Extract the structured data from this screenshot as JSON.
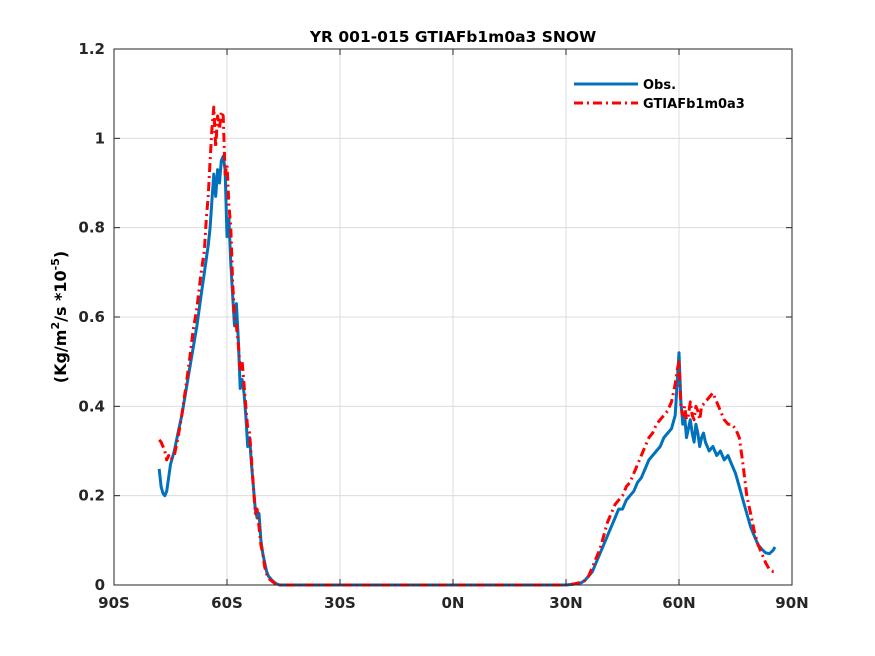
{
  "chart_data": {
    "type": "line",
    "title": "YR 001-015 GTIAFb1m0a3 SNOW",
    "xlabel": "",
    "ylabel": "(Kg/m²/s *10⁻⁵)",
    "ylabel_parts": {
      "base1": "(Kg/m",
      "sup1": "2",
      "base2": "/s *10",
      "sup2": "-5",
      "base3": ")"
    },
    "xlim": [
      -90,
      90
    ],
    "ylim": [
      0,
      1.2
    ],
    "xticks": [
      -90,
      -60,
      -30,
      0,
      30,
      60,
      90
    ],
    "xtick_labels": [
      "90S",
      "60S",
      "30S",
      "0N",
      "30N",
      "60N",
      "90N"
    ],
    "yticks": [
      0,
      0.2,
      0.4,
      0.6,
      0.8,
      1.0,
      1.2
    ],
    "ytick_labels": [
      "0",
      "0.2",
      "0.4",
      "0.6",
      "0.8",
      "1",
      "1.2"
    ],
    "grid": true,
    "legend_position": "top-right",
    "series": [
      {
        "name": "Obs.",
        "color": "#0072BD",
        "style": "solid",
        "points": [
          [
            -78,
            0.26
          ],
          [
            -77.5,
            0.22
          ],
          [
            -77,
            0.205
          ],
          [
            -76.5,
            0.2
          ],
          [
            -76,
            0.21
          ],
          [
            -75.5,
            0.24
          ],
          [
            -75,
            0.27
          ],
          [
            -74,
            0.3
          ],
          [
            -73,
            0.34
          ],
          [
            -72,
            0.38
          ],
          [
            -71,
            0.43
          ],
          [
            -70,
            0.48
          ],
          [
            -69,
            0.53
          ],
          [
            -68,
            0.58
          ],
          [
            -67,
            0.64
          ],
          [
            -66,
            0.7
          ],
          [
            -65,
            0.76
          ],
          [
            -64.5,
            0.8
          ],
          [
            -64,
            0.86
          ],
          [
            -63.5,
            0.92
          ],
          [
            -63,
            0.87
          ],
          [
            -62.5,
            0.93
          ],
          [
            -62,
            0.9
          ],
          [
            -61.5,
            0.95
          ],
          [
            -61,
            0.96
          ],
          [
            -60.5,
            0.93
          ],
          [
            -60,
            0.78
          ],
          [
            -59.5,
            0.82
          ],
          [
            -59,
            0.72
          ],
          [
            -58.5,
            0.65
          ],
          [
            -58,
            0.58
          ],
          [
            -57.5,
            0.63
          ],
          [
            -57,
            0.55
          ],
          [
            -56.5,
            0.44
          ],
          [
            -56,
            0.46
          ],
          [
            -55.5,
            0.43
          ],
          [
            -55,
            0.38
          ],
          [
            -54.5,
            0.31
          ],
          [
            -54,
            0.33
          ],
          [
            -53.5,
            0.27
          ],
          [
            -53,
            0.22
          ],
          [
            -52.5,
            0.17
          ],
          [
            -52,
            0.15
          ],
          [
            -51.5,
            0.16
          ],
          [
            -51,
            0.1
          ],
          [
            -50.5,
            0.07
          ],
          [
            -50,
            0.05
          ],
          [
            -49.5,
            0.03
          ],
          [
            -49,
            0.02
          ],
          [
            -48,
            0.01
          ],
          [
            -47,
            0.003
          ],
          [
            -46,
            0.0
          ],
          [
            -40,
            0.0
          ],
          [
            -30,
            0.0
          ],
          [
            -20,
            0.0
          ],
          [
            -10,
            0.0
          ],
          [
            0,
            0.0
          ],
          [
            10,
            0.0
          ],
          [
            20,
            0.0
          ],
          [
            30,
            0.0
          ],
          [
            32,
            0.002
          ],
          [
            34,
            0.005
          ],
          [
            35,
            0.01
          ],
          [
            36,
            0.02
          ],
          [
            37,
            0.03
          ],
          [
            38,
            0.05
          ],
          [
            39,
            0.07
          ],
          [
            40,
            0.09
          ],
          [
            41,
            0.11
          ],
          [
            42,
            0.13
          ],
          [
            43,
            0.15
          ],
          [
            44,
            0.17
          ],
          [
            45,
            0.17
          ],
          [
            46,
            0.19
          ],
          [
            47,
            0.2
          ],
          [
            48,
            0.21
          ],
          [
            49,
            0.23
          ],
          [
            50,
            0.24
          ],
          [
            51,
            0.26
          ],
          [
            52,
            0.28
          ],
          [
            53,
            0.29
          ],
          [
            54,
            0.3
          ],
          [
            55,
            0.31
          ],
          [
            56,
            0.33
          ],
          [
            57,
            0.34
          ],
          [
            58,
            0.35
          ],
          [
            59,
            0.38
          ],
          [
            59.5,
            0.45
          ],
          [
            60,
            0.52
          ],
          [
            60.5,
            0.41
          ],
          [
            61,
            0.36
          ],
          [
            61.5,
            0.38
          ],
          [
            62,
            0.33
          ],
          [
            62.5,
            0.35
          ],
          [
            63,
            0.37
          ],
          [
            63.5,
            0.34
          ],
          [
            64,
            0.32
          ],
          [
            64.5,
            0.36
          ],
          [
            65,
            0.34
          ],
          [
            65.5,
            0.31
          ],
          [
            66,
            0.33
          ],
          [
            66.5,
            0.34
          ],
          [
            67,
            0.32
          ],
          [
            67.5,
            0.31
          ],
          [
            68,
            0.3
          ],
          [
            69,
            0.31
          ],
          [
            70,
            0.29
          ],
          [
            71,
            0.3
          ],
          [
            72,
            0.28
          ],
          [
            73,
            0.29
          ],
          [
            74,
            0.27
          ],
          [
            75,
            0.25
          ],
          [
            76,
            0.22
          ],
          [
            77,
            0.19
          ],
          [
            78,
            0.16
          ],
          [
            79,
            0.13
          ],
          [
            80,
            0.11
          ],
          [
            81,
            0.09
          ],
          [
            82,
            0.08
          ],
          [
            83,
            0.072
          ],
          [
            84,
            0.07
          ],
          [
            85,
            0.078
          ],
          [
            85.5,
            0.085
          ]
        ]
      },
      {
        "name": "GTIAFb1m0a3",
        "color": "#FF0000",
        "style": "dashdot",
        "points": [
          [
            -78,
            0.325
          ],
          [
            -77.5,
            0.32
          ],
          [
            -77,
            0.31
          ],
          [
            -76.5,
            0.3
          ],
          [
            -76,
            0.28
          ],
          [
            -75.5,
            0.29
          ],
          [
            -75,
            0.28
          ],
          [
            -74.5,
            0.285
          ],
          [
            -74,
            0.29
          ],
          [
            -73.5,
            0.31
          ],
          [
            -73,
            0.33
          ],
          [
            -72,
            0.38
          ],
          [
            -71,
            0.44
          ],
          [
            -70,
            0.5
          ],
          [
            -69,
            0.57
          ],
          [
            -68,
            0.62
          ],
          [
            -67,
            0.69
          ],
          [
            -66,
            0.75
          ],
          [
            -65.5,
            0.82
          ],
          [
            -65,
            0.87
          ],
          [
            -64.5,
            0.95
          ],
          [
            -64,
            1.02
          ],
          [
            -63.5,
            1.07
          ],
          [
            -63,
            0.98
          ],
          [
            -62.5,
            1.05
          ],
          [
            -62,
            1.02
          ],
          [
            -61.5,
            1.06
          ],
          [
            -61,
            1.05
          ],
          [
            -60.5,
            0.92
          ],
          [
            -60,
            0.94
          ],
          [
            -59.5,
            0.85
          ],
          [
            -59,
            0.8
          ],
          [
            -58.5,
            0.68
          ],
          [
            -58,
            0.6
          ],
          [
            -57.5,
            0.58
          ],
          [
            -57,
            0.54
          ],
          [
            -56.5,
            0.48
          ],
          [
            -56,
            0.5
          ],
          [
            -55.5,
            0.45
          ],
          [
            -55,
            0.4
          ],
          [
            -54.5,
            0.35
          ],
          [
            -54,
            0.34
          ],
          [
            -53.5,
            0.28
          ],
          [
            -53,
            0.22
          ],
          [
            -52.5,
            0.16
          ],
          [
            -52,
            0.17
          ],
          [
            -51.5,
            0.13
          ],
          [
            -51,
            0.09
          ],
          [
            -50.5,
            0.07
          ],
          [
            -50,
            0.04
          ],
          [
            -49.5,
            0.025
          ],
          [
            -49,
            0.015
          ],
          [
            -48,
            0.008
          ],
          [
            -47,
            0.002
          ],
          [
            -46,
            0.0
          ],
          [
            -40,
            0.0
          ],
          [
            -30,
            0.0
          ],
          [
            -20,
            0.0
          ],
          [
            -10,
            0.0
          ],
          [
            0,
            0.0
          ],
          [
            10,
            0.0
          ],
          [
            20,
            0.0
          ],
          [
            30,
            0.0
          ],
          [
            32,
            0.002
          ],
          [
            34,
            0.006
          ],
          [
            35,
            0.01
          ],
          [
            36,
            0.02
          ],
          [
            37,
            0.04
          ],
          [
            38,
            0.06
          ],
          [
            39,
            0.08
          ],
          [
            40,
            0.11
          ],
          [
            41,
            0.14
          ],
          [
            42,
            0.16
          ],
          [
            43,
            0.18
          ],
          [
            44,
            0.19
          ],
          [
            45,
            0.2
          ],
          [
            46,
            0.22
          ],
          [
            47,
            0.23
          ],
          [
            48,
            0.25
          ],
          [
            49,
            0.27
          ],
          [
            50,
            0.29
          ],
          [
            51,
            0.31
          ],
          [
            52,
            0.33
          ],
          [
            53,
            0.34
          ],
          [
            54,
            0.36
          ],
          [
            55,
            0.37
          ],
          [
            56,
            0.38
          ],
          [
            57,
            0.39
          ],
          [
            58,
            0.41
          ],
          [
            59,
            0.45
          ],
          [
            59.5,
            0.48
          ],
          [
            60,
            0.5
          ],
          [
            60.5,
            0.4
          ],
          [
            61,
            0.38
          ],
          [
            61.5,
            0.4
          ],
          [
            62,
            0.37
          ],
          [
            62.5,
            0.38
          ],
          [
            63,
            0.41
          ],
          [
            63.5,
            0.38
          ],
          [
            64,
            0.37
          ],
          [
            64.5,
            0.4
          ],
          [
            65,
            0.39
          ],
          [
            65.5,
            0.37
          ],
          [
            66,
            0.4
          ],
          [
            67,
            0.41
          ],
          [
            68,
            0.42
          ],
          [
            69,
            0.43
          ],
          [
            70,
            0.41
          ],
          [
            71,
            0.39
          ],
          [
            72,
            0.37
          ],
          [
            73,
            0.36
          ],
          [
            74,
            0.36
          ],
          [
            75,
            0.35
          ],
          [
            76,
            0.33
          ],
          [
            77,
            0.27
          ],
          [
            78,
            0.2
          ],
          [
            79,
            0.16
          ],
          [
            80,
            0.12
          ],
          [
            81,
            0.09
          ],
          [
            82,
            0.07
          ],
          [
            83,
            0.05
          ],
          [
            84,
            0.035
          ],
          [
            85,
            0.03
          ],
          [
            85.5,
            0.03
          ]
        ]
      }
    ]
  }
}
